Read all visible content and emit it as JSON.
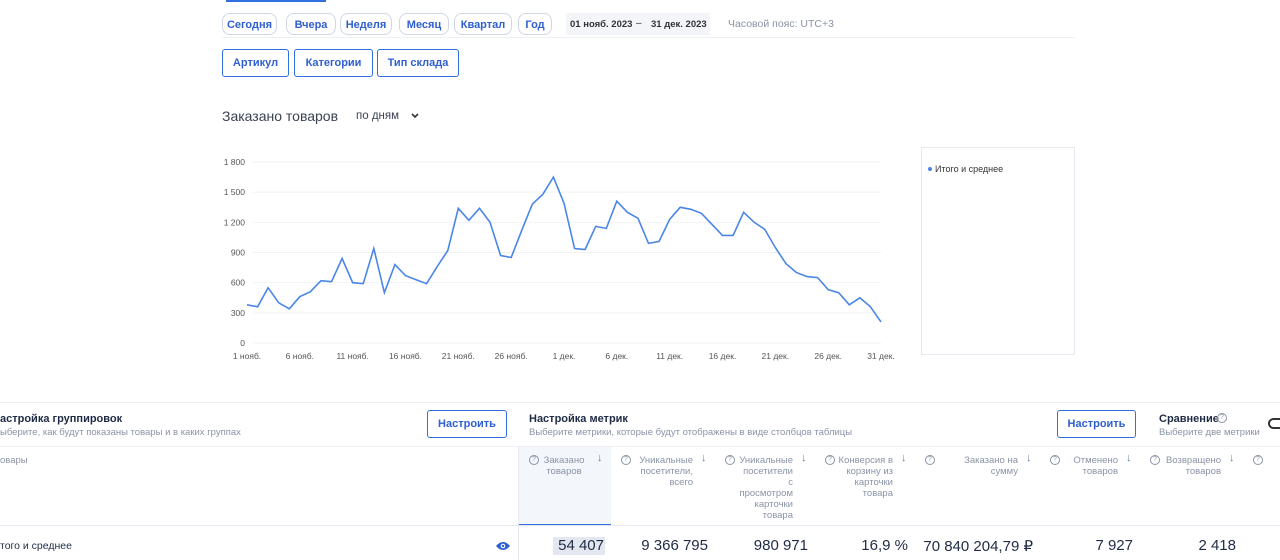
{
  "periods": [
    "Сегодня",
    "Вчера",
    "Неделя",
    "Месяц",
    "Квартал",
    "Год"
  ],
  "date_range": {
    "from": "01 нояб. 2023",
    "separator": "–",
    "to": "31 дек. 2023"
  },
  "timezone": "Часовой пояс: UTC+3",
  "filters": [
    "Артикул",
    "Категории",
    "Тип склада"
  ],
  "chart_data": {
    "type": "line",
    "title": "Заказано товаров",
    "granularity": "по дням",
    "categories": [
      "1 нояб.",
      null,
      null,
      null,
      null,
      "6 нояб.",
      null,
      null,
      null,
      null,
      "11 нояб.",
      null,
      null,
      null,
      null,
      "16 нояб.",
      null,
      null,
      null,
      null,
      "21 нояб.",
      null,
      null,
      null,
      null,
      "26 нояб.",
      null,
      null,
      null,
      null,
      "1 дек.",
      null,
      null,
      null,
      null,
      "6 дек.",
      null,
      null,
      null,
      null,
      "11 дек.",
      null,
      null,
      null,
      null,
      "16 дек.",
      null,
      null,
      null,
      null,
      "21 дек.",
      null,
      null,
      null,
      null,
      "26 дек.",
      null,
      null,
      null,
      null,
      "31 дек."
    ],
    "series": [
      {
        "name": "Итого и среднее",
        "color": "#4a86e8",
        "values": [
          380,
          360,
          550,
          400,
          340,
          460,
          510,
          620,
          610,
          840,
          600,
          590,
          940,
          500,
          780,
          670,
          630,
          590,
          760,
          920,
          1340,
          1220,
          1340,
          1200,
          870,
          850,
          1120,
          1380,
          1480,
          1650,
          1390,
          940,
          930,
          1160,
          1140,
          1410,
          1300,
          1240,
          990,
          1010,
          1230,
          1350,
          1330,
          1290,
          1180,
          1070,
          1070,
          1300,
          1200,
          1130,
          950,
          790,
          700,
          660,
          650,
          530,
          500,
          380,
          450,
          360,
          210
        ]
      }
    ],
    "ylim": [
      0,
      1800
    ],
    "yticks": [
      0,
      300,
      600,
      900,
      {
        "value": 1200,
        "label": "1 200"
      },
      {
        "value": 1500,
        "label": "1 500"
      },
      {
        "value": 1800,
        "label": "1 800"
      }
    ],
    "grid": true
  },
  "grouping": {
    "title": "астройка группировок",
    "subtitle": "ыберите, как будут показаны товары и в каких группах",
    "button": "Настроить"
  },
  "metrics_settings": {
    "title": "Настройка метрик",
    "subtitle": "Выберите метрики, которые будут отображены в виде столбцов таблицы",
    "button": "Настроить"
  },
  "comparison": {
    "title": "Сравнение",
    "subtitle": "Выберите две метрики"
  },
  "table": {
    "columns": [
      "овары",
      "Заказано товаров",
      "Уникальные посетители, всего",
      "Уникальные посетители с просмотром карточки товара",
      "Конверсия в корзину из карточки товара",
      "Заказано на сумму",
      "Отменено товаров",
      "Возвращено товаров"
    ],
    "rows": [
      [
        "того и среднее",
        "54 407",
        "9 366 795",
        "980 971",
        "16,9 %",
        "70 840 204,79 ₽",
        "7 927",
        "2 418"
      ]
    ]
  }
}
